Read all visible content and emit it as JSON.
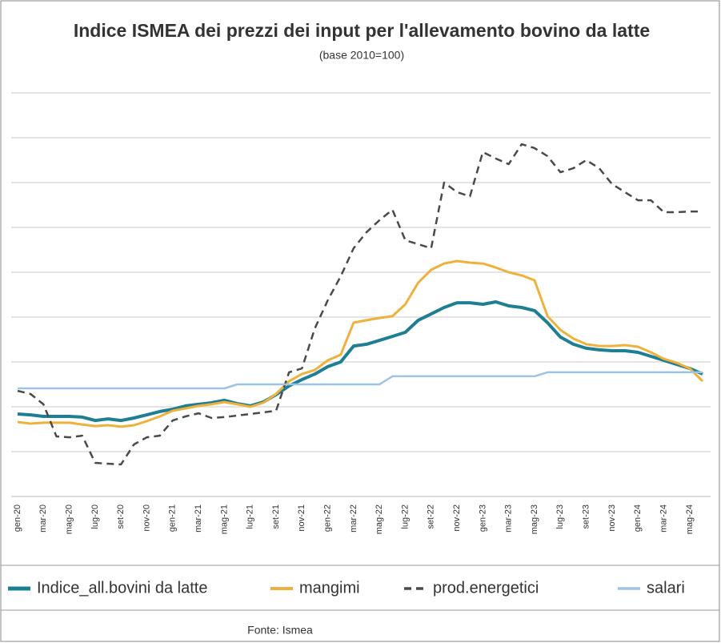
{
  "chart_data": {
    "type": "line",
    "title": "Indice ISMEA dei prezzi dei input per l'allevamento bovino da latte",
    "subtitle": "(base 2010=100)",
    "source": "Fonte: Ismea",
    "categories": [
      "gen-20",
      null,
      "mar-20",
      null,
      "mag-20",
      null,
      "lug-20",
      null,
      "set-20",
      null,
      "nov-20",
      null,
      "gen-21",
      null,
      "mar-21",
      null,
      "mag-21",
      null,
      "lug-21",
      null,
      "set-21",
      null,
      "nov-21",
      null,
      "gen-22",
      null,
      "mar-22",
      null,
      "mag-22",
      null,
      "lug-22",
      null,
      "set-22",
      null,
      "nov-22",
      null,
      "gen-23",
      null,
      "mar-23",
      null,
      "mag-23",
      null,
      "lug-23",
      null,
      "set-23",
      null,
      "nov-23",
      null,
      "gen-24",
      null,
      "mar-24",
      null,
      "mag-24",
      null
    ],
    "series": [
      {
        "name": "Indice_all.bovini da latte",
        "color": "#1e7f94",
        "width": 4,
        "values": [
          96.8,
          96.4,
          95.7,
          95.7,
          95.7,
          95.4,
          93.9,
          94.6,
          93.9,
          95.0,
          96.4,
          97.9,
          98.9,
          100.4,
          101.1,
          101.8,
          102.9,
          101.4,
          100.4,
          102.1,
          105.4,
          109.3,
          112.1,
          114.6,
          117.9,
          120.0,
          127.1,
          127.9,
          129.6,
          131.4,
          133.2,
          138.6,
          141.4,
          144.3,
          146.4,
          146.4,
          145.7,
          146.8,
          145.0,
          144.3,
          142.9,
          137.5,
          131.1,
          127.9,
          126.1,
          125.4,
          125.0,
          125.0,
          124.3,
          122.5,
          120.7,
          118.9,
          117.1,
          114.6
        ]
      },
      {
        "name": "mangimi",
        "color": "#eeb23c",
        "width": 3,
        "values": [
          93.2,
          92.5,
          92.9,
          92.9,
          92.9,
          92.1,
          91.4,
          91.8,
          91.1,
          91.8,
          93.6,
          95.7,
          98.2,
          99.3,
          100.4,
          101.1,
          102.1,
          101.1,
          100.0,
          101.8,
          105.7,
          111.4,
          114.6,
          116.4,
          120.7,
          123.2,
          137.5,
          138.6,
          139.6,
          140.4,
          145.7,
          155.4,
          161.1,
          163.9,
          165.0,
          164.3,
          163.9,
          162.1,
          160.0,
          158.6,
          156.4,
          140.4,
          134.3,
          130.4,
          127.9,
          127.1,
          127.1,
          127.5,
          126.8,
          124.3,
          121.4,
          119.6,
          117.1,
          111.4
        ]
      },
      {
        "name": "prod.energetici",
        "color": "#4a4a4a",
        "width": 2.5,
        "dashed": true,
        "values": [
          107.1,
          105.7,
          101.1,
          86.8,
          86.4,
          87.1,
          75.0,
          74.6,
          74.3,
          83.2,
          86.4,
          87.1,
          93.9,
          95.7,
          97.1,
          95.0,
          95.4,
          96.1,
          96.8,
          97.5,
          98.2,
          115.4,
          117.1,
          135.0,
          147.5,
          158.2,
          170.7,
          177.9,
          183.2,
          187.9,
          174.3,
          172.5,
          170.7,
          200.0,
          195.7,
          193.9,
          213.6,
          210.7,
          208.2,
          217.1,
          215.4,
          211.8,
          204.6,
          206.4,
          210.0,
          206.4,
          199.3,
          195.7,
          192.1,
          192.1,
          186.8,
          186.8,
          187.1,
          187.1
        ]
      },
      {
        "name": "salari",
        "color": "#9dc3e6",
        "width": 2.5,
        "values": [
          108.2,
          108.2,
          108.2,
          108.2,
          108.2,
          108.2,
          108.2,
          108.2,
          108.2,
          108.2,
          108.2,
          108.2,
          108.2,
          108.2,
          108.2,
          108.2,
          108.2,
          110.0,
          110.0,
          110.0,
          110.0,
          110.0,
          110.0,
          110.0,
          110.0,
          110.0,
          110.0,
          110.0,
          110.0,
          113.6,
          113.6,
          113.6,
          113.6,
          113.6,
          113.6,
          113.6,
          113.6,
          113.6,
          113.6,
          113.6,
          113.6,
          115.4,
          115.4,
          115.4,
          115.4,
          115.4,
          115.4,
          115.4,
          115.4,
          115.4,
          115.4,
          115.4,
          115.4,
          115.4
        ]
      }
    ],
    "ylim": [
      60,
      240
    ],
    "yticks": [
      80,
      100,
      120,
      140,
      160,
      180,
      200,
      220,
      240
    ],
    "grid": true
  }
}
